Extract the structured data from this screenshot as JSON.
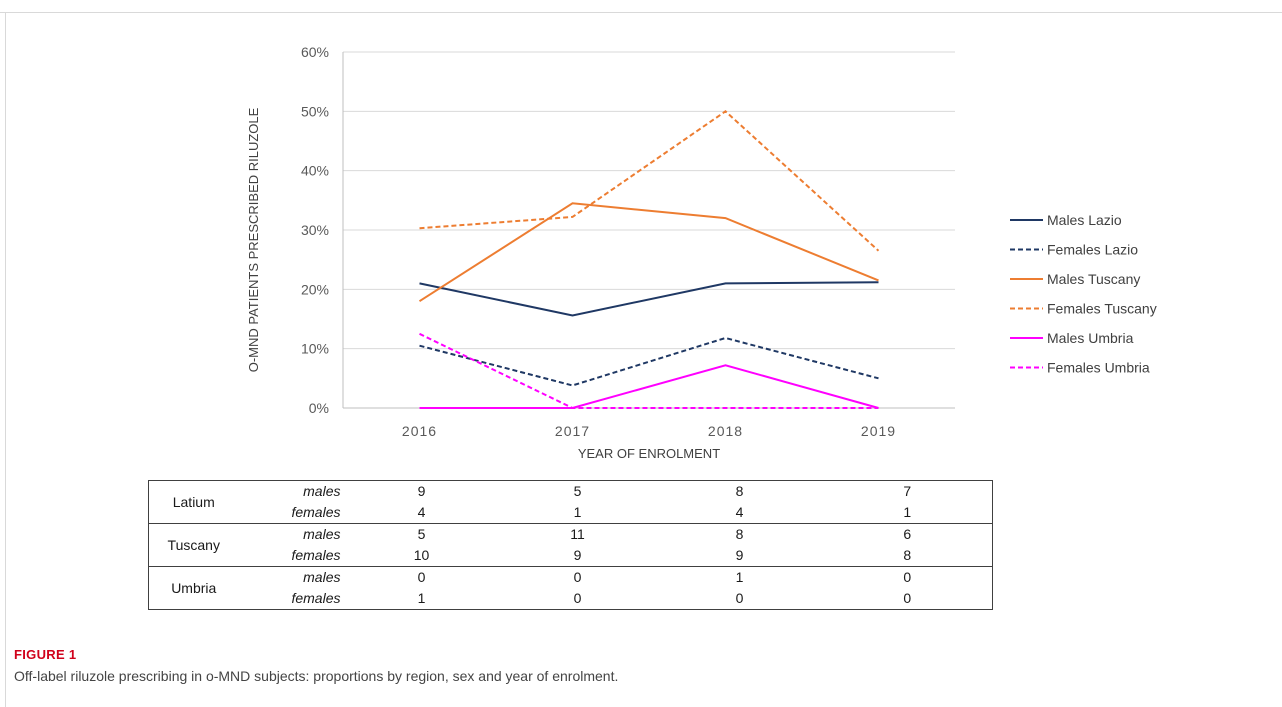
{
  "chart_data": {
    "type": "line",
    "xlabel": "YEAR OF ENROLMENT",
    "ylabel": "O-MND PATIENTS PRESCRIBED RILUZOLE",
    "categories": [
      "2016",
      "2017",
      "2018",
      "2019"
    ],
    "ylim": [
      0,
      60
    ],
    "yticks": [
      "0%",
      "10%",
      "20%",
      "30%",
      "40%",
      "50%",
      "60%"
    ],
    "grid": true,
    "legend_position": "right",
    "series": [
      {
        "name": "Males Lazio",
        "values": [
          21,
          15.6,
          21,
          21.2
        ],
        "color": "#1f3864",
        "dashed": false
      },
      {
        "name": "Females Lazio",
        "values": [
          10.5,
          3.8,
          11.8,
          5
        ],
        "color": "#1f3864",
        "dashed": true
      },
      {
        "name": "Males Tuscany",
        "values": [
          18,
          34.5,
          32,
          21.5
        ],
        "color": "#ed7d31",
        "dashed": false
      },
      {
        "name": "Females Tuscany",
        "values": [
          30.3,
          32.2,
          50,
          26.5
        ],
        "color": "#ed7d31",
        "dashed": true
      },
      {
        "name": "Males Umbria",
        "values": [
          0,
          0,
          7.2,
          0
        ],
        "color": "#ff00ff",
        "dashed": false
      },
      {
        "name": "Females Umbria",
        "values": [
          12.5,
          0,
          0,
          0
        ],
        "color": "#ff00ff",
        "dashed": true
      }
    ]
  },
  "table": {
    "rows": [
      {
        "region": "Latium",
        "sex": "males",
        "values": [
          "9",
          "5",
          "8",
          "7"
        ]
      },
      {
        "region": "",
        "sex": "females",
        "values": [
          "4",
          "1",
          "4",
          "1"
        ]
      },
      {
        "region": "Tuscany",
        "sex": "males",
        "values": [
          "5",
          "11",
          "8",
          "6"
        ]
      },
      {
        "region": "",
        "sex": "females",
        "values": [
          "10",
          "9",
          "9",
          "8"
        ]
      },
      {
        "region": "Umbria",
        "sex": "males",
        "values": [
          "0",
          "0",
          "1",
          "0"
        ]
      },
      {
        "region": "",
        "sex": "females",
        "values": [
          "1",
          "0",
          "0",
          "0"
        ]
      }
    ]
  },
  "figure": {
    "title": "FIGURE 1",
    "caption": "Off-label riluzole prescribing in o-MND subjects: proportions by region, sex and year of enrolment."
  }
}
